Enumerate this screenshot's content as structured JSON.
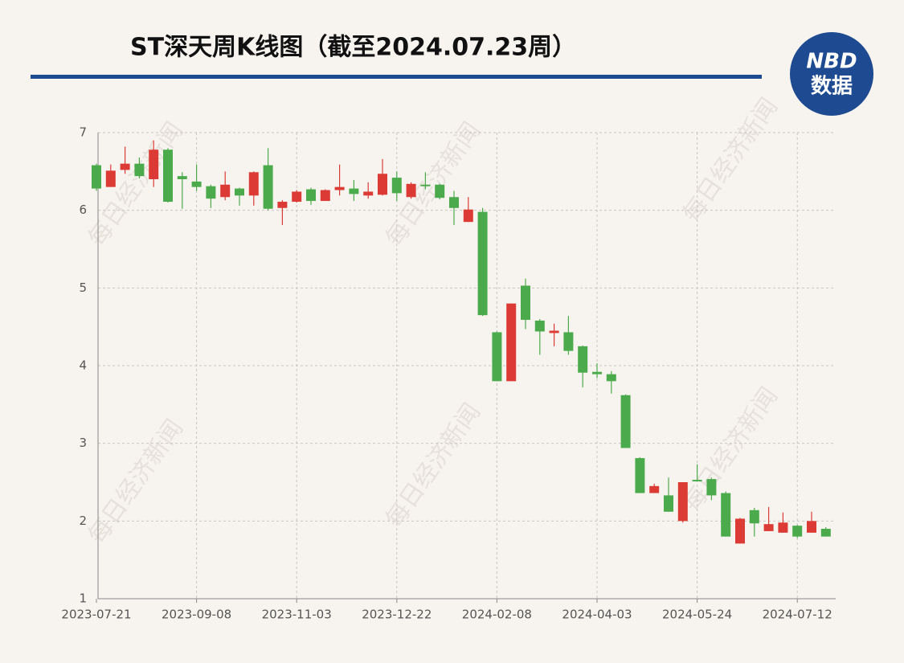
{
  "chart_data": {
    "type": "candlestick",
    "title": "ST深天周K线图（截至2024.07.23周）",
    "categories": [
      "2023-07-21",
      null,
      null,
      null,
      null,
      null,
      null,
      "2023-09-08",
      null,
      null,
      null,
      null,
      null,
      null,
      "2023-11-03",
      null,
      null,
      null,
      null,
      null,
      null,
      "2023-12-22",
      null,
      null,
      null,
      null,
      null,
      null,
      "2024-02-08",
      null,
      null,
      null,
      null,
      null,
      null,
      "2024-04-03",
      null,
      null,
      null,
      null,
      null,
      null,
      "2024-05-24",
      null,
      null,
      null,
      null,
      null,
      null,
      "2024-07-12",
      null,
      null
    ],
    "open": [
      6.58,
      6.3,
      6.52,
      6.6,
      6.4,
      6.78,
      6.44,
      6.37,
      6.31,
      6.17,
      6.28,
      6.19,
      6.58,
      6.03,
      6.11,
      6.27,
      6.12,
      6.26,
      6.28,
      6.19,
      6.2,
      6.42,
      6.17,
      6.33,
      6.33,
      6.17,
      5.85,
      5.98,
      4.43,
      3.8,
      5.03,
      4.58,
      4.42,
      4.43,
      4.25,
      3.92,
      3.89,
      3.62,
      2.81,
      2.36,
      2.33,
      2.0,
      2.53,
      2.54,
      2.36,
      1.71,
      2.14,
      1.87,
      1.85,
      1.94,
      1.85,
      1.9
    ],
    "high": [
      6.6,
      6.59,
      6.82,
      6.68,
      6.9,
      6.8,
      6.49,
      6.59,
      6.33,
      6.5,
      6.29,
      6.5,
      6.8,
      6.13,
      6.26,
      6.29,
      6.27,
      6.59,
      6.39,
      6.36,
      6.66,
      6.5,
      6.36,
      6.49,
      6.34,
      6.25,
      6.17,
      6.03,
      4.44,
      4.8,
      5.12,
      4.6,
      4.54,
      4.64,
      4.26,
      4.03,
      3.93,
      3.63,
      2.82,
      2.48,
      2.56,
      2.5,
      2.73,
      2.56,
      2.38,
      2.04,
      2.17,
      2.18,
      2.11,
      1.95,
      2.12,
      1.92
    ],
    "low": [
      6.25,
      6.3,
      6.47,
      6.41,
      6.3,
      6.1,
      6.02,
      6.25,
      6.03,
      6.13,
      6.06,
      6.06,
      6.0,
      5.81,
      6.1,
      6.07,
      6.12,
      6.19,
      6.12,
      6.15,
      6.19,
      6.12,
      6.15,
      6.27,
      6.14,
      5.81,
      5.85,
      4.64,
      3.8,
      3.8,
      4.47,
      4.14,
      4.25,
      4.14,
      3.72,
      3.84,
      3.64,
      2.94,
      2.36,
      2.36,
      2.12,
      1.98,
      2.51,
      2.27,
      1.8,
      1.71,
      1.8,
      1.87,
      1.85,
      1.78,
      1.85,
      1.8
    ],
    "close": [
      6.28,
      6.51,
      6.6,
      6.44,
      6.78,
      6.11,
      6.4,
      6.3,
      6.15,
      6.33,
      6.19,
      6.49,
      6.02,
      6.11,
      6.24,
      6.12,
      6.26,
      6.3,
      6.21,
      6.24,
      6.47,
      6.22,
      6.34,
      6.31,
      6.16,
      6.03,
      6.01,
      4.65,
      3.8,
      4.8,
      4.59,
      4.44,
      4.45,
      4.19,
      3.91,
      3.89,
      3.8,
      2.94,
      2.36,
      2.45,
      2.12,
      2.5,
      2.51,
      2.33,
      1.8,
      2.03,
      1.97,
      1.96,
      1.98,
      1.8,
      2.0,
      1.8
    ],
    "up_color": "#dc3a35",
    "down_color": "#4bab4c",
    "ylim": [
      1,
      7
    ],
    "yticks": [
      1,
      2,
      3,
      4,
      5,
      6,
      7
    ],
    "grid": true
  },
  "logo": {
    "brand": "NBD",
    "label": "数据"
  },
  "watermark": "每日经济新闻"
}
